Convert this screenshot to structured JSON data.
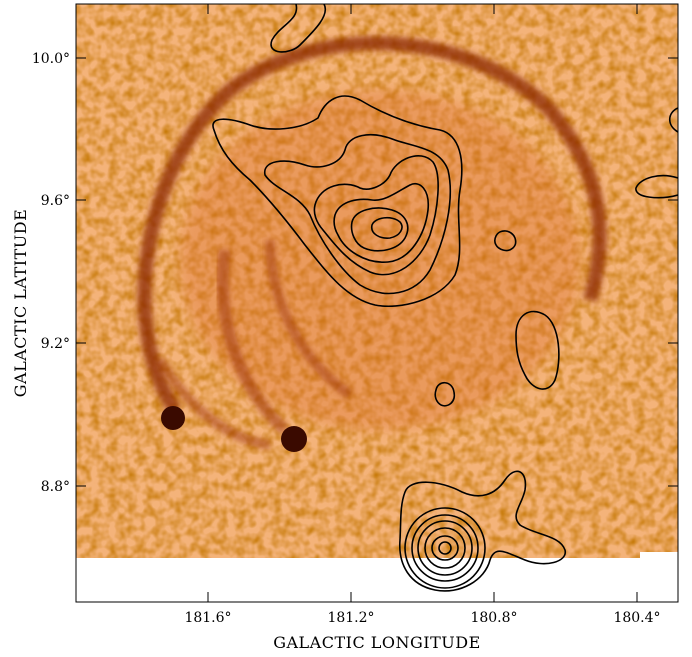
{
  "figure": {
    "ylabel": "GALACTIC LATITUDE",
    "xlabel": "GALACTIC LONGITUDE",
    "y_ticks": [
      "10.0°",
      "9.6°",
      "9.2°",
      "8.8°"
    ],
    "x_ticks": [
      "181.6°",
      "181.2°",
      "180.8°",
      "180.4°"
    ],
    "colors": {
      "background_light": "#fbe7cf",
      "emission_mid": "#e98a45",
      "emission_dark": "#8a2500",
      "contour": "#000000"
    }
  }
}
